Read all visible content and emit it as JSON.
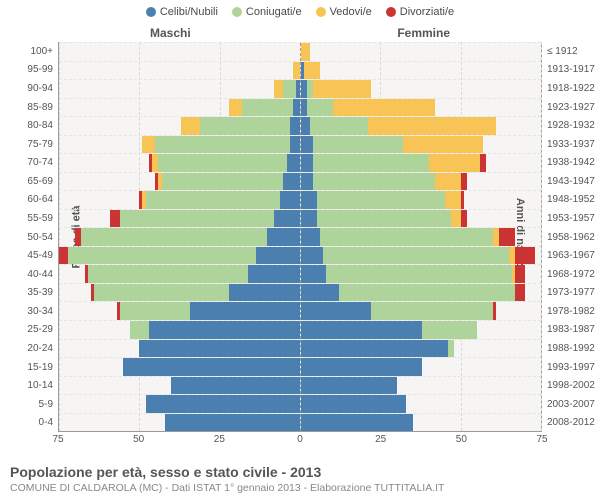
{
  "colors": {
    "celibi": "#4a7fb0",
    "coniugati": "#afd49b",
    "vedovi": "#f7c d55",
    "vedovi_safe": "#f7c455",
    "divorziati": "#cc3333",
    "plot_bg": "#f6f5f3",
    "grid": "#d8d8d8",
    "axis": "#9a9a9a",
    "text": "#555555"
  },
  "legend": [
    {
      "label": "Celibi/Nubili",
      "color": "#4a7fb0"
    },
    {
      "label": "Coniugati/e",
      "color": "#afd49b"
    },
    {
      "label": "Vedovi/e",
      "color": "#f7c455"
    },
    {
      "label": "Divorziati/e",
      "color": "#cc3333"
    }
  ],
  "gender": {
    "male": "Maschi",
    "female": "Femmine"
  },
  "axis_titles": {
    "left": "Fasce di età",
    "right": "Anni di nascita"
  },
  "xmax": 75,
  "xticks": [
    75,
    50,
    25,
    0,
    25,
    50,
    75
  ],
  "age_labels": [
    "100+",
    "95-99",
    "90-94",
    "85-89",
    "80-84",
    "75-79",
    "70-74",
    "65-69",
    "60-64",
    "55-59",
    "50-54",
    "45-49",
    "40-44",
    "35-39",
    "30-34",
    "25-29",
    "20-24",
    "15-19",
    "10-14",
    "5-9",
    "0-4"
  ],
  "year_labels": [
    "≤ 1912",
    "1913-1917",
    "1918-1922",
    "1923-1927",
    "1928-1932",
    "1933-1937",
    "1938-1942",
    "1943-1947",
    "1948-1952",
    "1953-1957",
    "1958-1962",
    "1963-1967",
    "1968-1972",
    "1973-1977",
    "1978-1982",
    "1983-1987",
    "1988-1992",
    "1993-1997",
    "1998-2002",
    "2003-2007",
    "2008-2012"
  ],
  "rows": [
    {
      "m": {
        "cel": 0,
        "con": 0,
        "ved": 0,
        "div": 0
      },
      "f": {
        "cel": 0,
        "con": 0,
        "ved": 3,
        "div": 0
      }
    },
    {
      "m": {
        "cel": 0,
        "con": 0,
        "ved": 2,
        "div": 0
      },
      "f": {
        "cel": 1,
        "con": 0,
        "ved": 5,
        "div": 0
      }
    },
    {
      "m": {
        "cel": 1,
        "con": 4,
        "ved": 3,
        "div": 0
      },
      "f": {
        "cel": 2,
        "con": 2,
        "ved": 18,
        "div": 0
      }
    },
    {
      "m": {
        "cel": 2,
        "con": 16,
        "ved": 4,
        "div": 0
      },
      "f": {
        "cel": 2,
        "con": 8,
        "ved": 32,
        "div": 0
      }
    },
    {
      "m": {
        "cel": 3,
        "con": 28,
        "ved": 6,
        "div": 0
      },
      "f": {
        "cel": 3,
        "con": 18,
        "ved": 40,
        "div": 0
      }
    },
    {
      "m": {
        "cel": 3,
        "con": 42,
        "ved": 4,
        "div": 0
      },
      "f": {
        "cel": 4,
        "con": 28,
        "ved": 25,
        "div": 0
      }
    },
    {
      "m": {
        "cel": 4,
        "con": 40,
        "ved": 2,
        "div": 1
      },
      "f": {
        "cel": 4,
        "con": 36,
        "ved": 16,
        "div": 2
      }
    },
    {
      "m": {
        "cel": 5,
        "con": 38,
        "ved": 1,
        "div": 1
      },
      "f": {
        "cel": 4,
        "con": 38,
        "ved": 8,
        "div": 2
      }
    },
    {
      "m": {
        "cel": 6,
        "con": 42,
        "ved": 1,
        "div": 1
      },
      "f": {
        "cel": 5,
        "con": 40,
        "ved": 5,
        "div": 1
      }
    },
    {
      "m": {
        "cel": 8,
        "con": 48,
        "ved": 0,
        "div": 3
      },
      "f": {
        "cel": 5,
        "con": 42,
        "ved": 3,
        "div": 2
      }
    },
    {
      "m": {
        "cel": 10,
        "con": 58,
        "ved": 0,
        "div": 2
      },
      "f": {
        "cel": 6,
        "con": 54,
        "ved": 2,
        "div": 5
      }
    },
    {
      "m": {
        "cel": 14,
        "con": 60,
        "ved": 0,
        "div": 3
      },
      "f": {
        "cel": 7,
        "con": 58,
        "ved": 2,
        "div": 6
      }
    },
    {
      "m": {
        "cel": 16,
        "con": 50,
        "ved": 0,
        "div": 1
      },
      "f": {
        "cel": 8,
        "con": 58,
        "ved": 1,
        "div": 3
      }
    },
    {
      "m": {
        "cel": 22,
        "con": 42,
        "ved": 0,
        "div": 1
      },
      "f": {
        "cel": 12,
        "con": 55,
        "ved": 0,
        "div": 3
      }
    },
    {
      "m": {
        "cel": 34,
        "con": 22,
        "ved": 0,
        "div": 1
      },
      "f": {
        "cel": 22,
        "con": 38,
        "ved": 0,
        "div": 1
      }
    },
    {
      "m": {
        "cel": 47,
        "con": 6,
        "ved": 0,
        "div": 0
      },
      "f": {
        "cel": 38,
        "con": 17,
        "ved": 0,
        "div": 0
      }
    },
    {
      "m": {
        "cel": 50,
        "con": 0,
        "ved": 0,
        "div": 0
      },
      "f": {
        "cel": 46,
        "con": 2,
        "ved": 0,
        "div": 0
      }
    },
    {
      "m": {
        "cel": 55,
        "con": 0,
        "ved": 0,
        "div": 0
      },
      "f": {
        "cel": 38,
        "con": 0,
        "ved": 0,
        "div": 0
      }
    },
    {
      "m": {
        "cel": 40,
        "con": 0,
        "ved": 0,
        "div": 0
      },
      "f": {
        "cel": 30,
        "con": 0,
        "ved": 0,
        "div": 0
      }
    },
    {
      "m": {
        "cel": 48,
        "con": 0,
        "ved": 0,
        "div": 0
      },
      "f": {
        "cel": 33,
        "con": 0,
        "ved": 0,
        "div": 0
      }
    },
    {
      "m": {
        "cel": 42,
        "con": 0,
        "ved": 0,
        "div": 0
      },
      "f": {
        "cel": 35,
        "con": 0,
        "ved": 0,
        "div": 0
      }
    }
  ],
  "footer": {
    "title": "Popolazione per età, sesso e stato civile - 2013",
    "sub": "COMUNE DI CALDAROLA (MC) - Dati ISTAT 1° gennaio 2013 - Elaborazione TUTTITALIA.IT"
  }
}
